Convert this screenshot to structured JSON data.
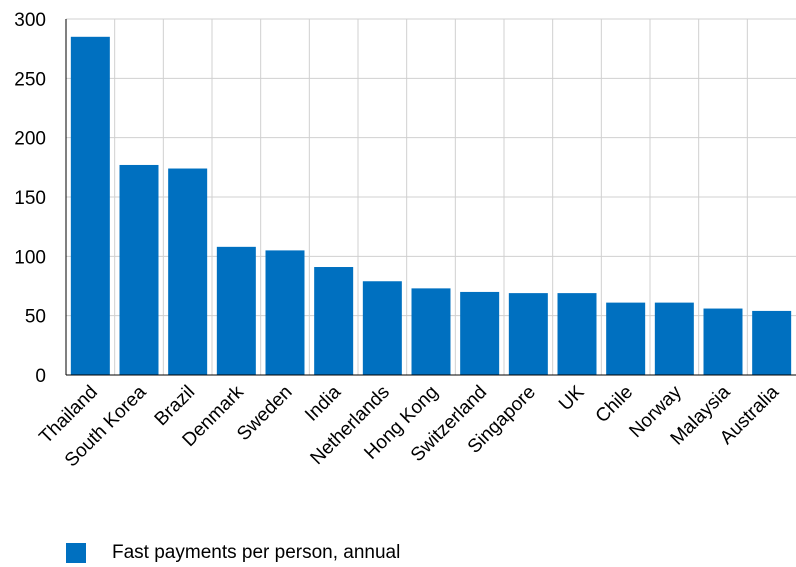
{
  "chart_data": {
    "type": "bar",
    "categories": [
      "Thailand",
      "South Korea",
      "Brazil",
      "Denmark",
      "Sweden",
      "India",
      "Netherlands",
      "Hong Kong",
      "Switzerland",
      "Singapore",
      "UK",
      "Chile",
      "Norway",
      "Malaysia",
      "Australia"
    ],
    "series": [
      {
        "name": "Fast payments per person, annual",
        "values": [
          285,
          177,
          174,
          108,
          105,
          91,
          79,
          73,
          70,
          69,
          69,
          61,
          61,
          56,
          54
        ],
        "color": "#0070C0"
      }
    ],
    "ylim": [
      0,
      300
    ],
    "yticks": [
      0,
      50,
      100,
      150,
      200,
      250,
      300
    ],
    "grid": true,
    "legend_position": "bottom-left"
  }
}
